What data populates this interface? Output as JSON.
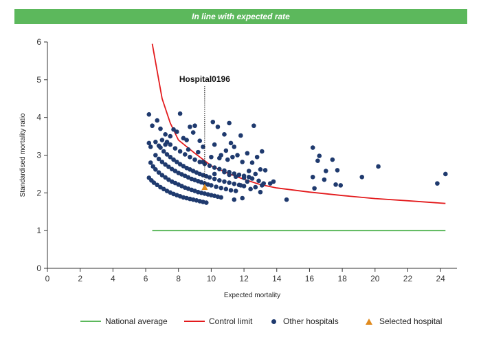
{
  "banner": {
    "text": "In line with expected rate"
  },
  "chart_data": {
    "type": "scatter",
    "title": "",
    "xlabel": "Expected mortality",
    "ylabel": "Standardised mortality ratio",
    "xlim": [
      0,
      25
    ],
    "ylim": [
      0,
      6
    ],
    "xticks": [
      0,
      2,
      4,
      6,
      8,
      10,
      12,
      14,
      16,
      18,
      20,
      22,
      24
    ],
    "yticks": [
      0,
      1,
      2,
      3,
      4,
      5,
      6
    ],
    "grid": false,
    "legend_position": "bottom",
    "colors": {
      "national_average": "#5cb85c",
      "control_limit": "#e31a1c",
      "other_hospitals": "#1f3a6e",
      "selected_hospital": "#e08a1e"
    },
    "national_average": {
      "name": "National average",
      "y": 1,
      "x_range": [
        6.4,
        24.3
      ]
    },
    "control_limit": {
      "name": "Control limit",
      "x_start": 6.4,
      "x_end": 24.3,
      "points": [
        [
          6.4,
          5.95
        ],
        [
          7,
          4.5
        ],
        [
          7.5,
          3.85
        ],
        [
          8,
          3.4
        ],
        [
          9,
          3.05
        ],
        [
          10,
          2.72
        ],
        [
          11,
          2.52
        ],
        [
          12,
          2.36
        ],
        [
          13,
          2.22
        ],
        [
          14,
          2.13
        ],
        [
          16,
          2.02
        ],
        [
          18,
          1.93
        ],
        [
          20,
          1.85
        ],
        [
          22,
          1.79
        ],
        [
          24.3,
          1.72
        ]
      ]
    },
    "selected_hospital": {
      "name": "Selected hospital",
      "label": "Hospital0196",
      "x": 9.6,
      "y": 2.15
    },
    "other_hospitals": {
      "name": "Other hospitals",
      "curve_points": [
        [
          6.2,
          2.4
        ],
        [
          6.35,
          2.33
        ],
        [
          6.5,
          2.27
        ],
        [
          6.7,
          2.21
        ],
        [
          6.9,
          2.15
        ],
        [
          7.1,
          2.1
        ],
        [
          7.3,
          2.05
        ],
        [
          7.5,
          2.01
        ],
        [
          7.7,
          1.97
        ],
        [
          7.9,
          1.94
        ],
        [
          8.1,
          1.91
        ],
        [
          8.3,
          1.88
        ],
        [
          8.5,
          1.86
        ],
        [
          8.7,
          1.84
        ],
        [
          8.9,
          1.82
        ],
        [
          9.1,
          1.8
        ],
        [
          9.3,
          1.78
        ],
        [
          9.5,
          1.76
        ],
        [
          9.7,
          1.74
        ],
        [
          6.3,
          2.8
        ],
        [
          6.45,
          2.7
        ],
        [
          6.6,
          2.62
        ],
        [
          6.8,
          2.54
        ],
        [
          7,
          2.47
        ],
        [
          7.2,
          2.41
        ],
        [
          7.4,
          2.35
        ],
        [
          7.6,
          2.3
        ],
        [
          7.8,
          2.26
        ],
        [
          8,
          2.22
        ],
        [
          8.2,
          2.18
        ],
        [
          8.4,
          2.14
        ],
        [
          8.6,
          2.11
        ],
        [
          8.8,
          2.08
        ],
        [
          9,
          2.05
        ],
        [
          9.2,
          2.02
        ],
        [
          9.4,
          2
        ],
        [
          9.6,
          1.98
        ],
        [
          9.8,
          1.96
        ],
        [
          10,
          1.94
        ],
        [
          10.2,
          1.92
        ],
        [
          10.4,
          1.9
        ],
        [
          10.6,
          1.88
        ],
        [
          6.6,
          3.0
        ],
        [
          6.8,
          2.9
        ],
        [
          7,
          2.82
        ],
        [
          7.2,
          2.75
        ],
        [
          7.4,
          2.69
        ],
        [
          7.6,
          2.63
        ],
        [
          7.8,
          2.58
        ],
        [
          8,
          2.53
        ],
        [
          8.2,
          2.49
        ],
        [
          8.4,
          2.45
        ],
        [
          8.6,
          2.41
        ],
        [
          8.8,
          2.37
        ],
        [
          9,
          2.34
        ],
        [
          9.2,
          2.31
        ],
        [
          9.4,
          2.28
        ],
        [
          9.6,
          2.25
        ],
        [
          9.8,
          2.22
        ],
        [
          10,
          2.2
        ],
        [
          10.3,
          2.16
        ],
        [
          10.6,
          2.13
        ],
        [
          10.9,
          2.1
        ],
        [
          11.2,
          2.07
        ],
        [
          11.5,
          2.05
        ],
        [
          6.9,
          3.2
        ],
        [
          7.1,
          3.1
        ],
        [
          7.3,
          3.02
        ],
        [
          7.5,
          2.95
        ],
        [
          7.7,
          2.88
        ],
        [
          7.9,
          2.82
        ],
        [
          8.1,
          2.76
        ],
        [
          8.3,
          2.71
        ],
        [
          8.5,
          2.66
        ],
        [
          8.7,
          2.62
        ],
        [
          8.9,
          2.58
        ],
        [
          9.1,
          2.54
        ],
        [
          9.3,
          2.5
        ],
        [
          9.5,
          2.47
        ],
        [
          9.7,
          2.44
        ],
        [
          9.9,
          2.41
        ],
        [
          10.2,
          2.37
        ],
        [
          10.5,
          2.33
        ],
        [
          10.8,
          2.3
        ],
        [
          11.1,
          2.27
        ],
        [
          11.4,
          2.24
        ],
        [
          11.7,
          2.21
        ],
        [
          12,
          2.18
        ],
        [
          7.3,
          3.35
        ],
        [
          7.5,
          3.28
        ],
        [
          7.8,
          3.18
        ],
        [
          8.1,
          3.1
        ],
        [
          8.4,
          3.02
        ],
        [
          8.7,
          2.95
        ],
        [
          9,
          2.88
        ],
        [
          9.3,
          2.82
        ],
        [
          9.6,
          2.77
        ],
        [
          9.9,
          2.72
        ],
        [
          10.2,
          2.67
        ],
        [
          10.5,
          2.63
        ],
        [
          10.8,
          2.59
        ],
        [
          11.1,
          2.55
        ],
        [
          11.4,
          2.51
        ],
        [
          11.7,
          2.48
        ],
        [
          12,
          2.45
        ],
        [
          12.3,
          2.42
        ]
      ],
      "scatter_points": [
        [
          6.2,
          4.08
        ],
        [
          6.4,
          3.78
        ],
        [
          6.7,
          3.92
        ],
        [
          6.9,
          3.7
        ],
        [
          7.2,
          3.55
        ],
        [
          7.5,
          3.5
        ],
        [
          7.7,
          3.68
        ],
        [
          7.9,
          3.62
        ],
        [
          8.1,
          4.1
        ],
        [
          8.3,
          3.45
        ],
        [
          8.5,
          3.4
        ],
        [
          8.7,
          3.75
        ],
        [
          8.9,
          3.6
        ],
        [
          9.0,
          3.78
        ],
        [
          9.3,
          3.38
        ],
        [
          9.5,
          3.22
        ],
        [
          6.2,
          3.32
        ],
        [
          6.3,
          3.22
        ],
        [
          6.6,
          3.35
        ],
        [
          6.8,
          3.25
        ],
        [
          7.0,
          3.4
        ],
        [
          7.2,
          3.28
        ],
        [
          8.6,
          3.15
        ],
        [
          9.2,
          3.08
        ],
        [
          9.5,
          2.82
        ],
        [
          10.1,
          3.88
        ],
        [
          10.4,
          3.75
        ],
        [
          10.8,
          3.55
        ],
        [
          11.1,
          3.85
        ],
        [
          11.4,
          3.22
        ],
        [
          11.8,
          3.52
        ],
        [
          10.2,
          3.28
        ],
        [
          10.6,
          3.0
        ],
        [
          10.9,
          3.12
        ],
        [
          11.2,
          3.32
        ],
        [
          10.0,
          2.95
        ],
        [
          10.5,
          2.92
        ],
        [
          11.0,
          2.88
        ],
        [
          11.3,
          2.95
        ],
        [
          11.6,
          3.0
        ],
        [
          11.9,
          2.82
        ],
        [
          12.2,
          3.05
        ],
        [
          12.5,
          2.8
        ],
        [
          12.8,
          2.95
        ],
        [
          12.6,
          3.78
        ],
        [
          13.1,
          3.1
        ],
        [
          12.3,
          2.58
        ],
        [
          12.7,
          2.5
        ],
        [
          13.0,
          2.62
        ],
        [
          13.3,
          2.6
        ],
        [
          13.6,
          2.25
        ],
        [
          13.8,
          2.3
        ],
        [
          10.2,
          2.5
        ],
        [
          10.8,
          2.55
        ],
        [
          11.1,
          2.48
        ],
        [
          11.5,
          2.43
        ],
        [
          12.0,
          2.4
        ],
        [
          12.5,
          2.38
        ],
        [
          12.9,
          2.32
        ],
        [
          13.2,
          2.25
        ],
        [
          12.2,
          2.3
        ],
        [
          12.4,
          2.1
        ],
        [
          11.8,
          2.2
        ],
        [
          12.7,
          2.15
        ],
        [
          13.0,
          2.02
        ],
        [
          13.1,
          2.2
        ],
        [
          11.4,
          1.82
        ],
        [
          11.9,
          1.86
        ],
        [
          14.6,
          1.82
        ],
        [
          16.2,
          2.42
        ],
        [
          16.3,
          2.12
        ],
        [
          16.5,
          2.85
        ],
        [
          16.6,
          2.98
        ],
        [
          16.9,
          2.35
        ],
        [
          17.0,
          2.58
        ],
        [
          17.4,
          2.88
        ],
        [
          17.6,
          2.22
        ],
        [
          17.9,
          2.2
        ],
        [
          17.7,
          2.6
        ],
        [
          16.2,
          3.2
        ],
        [
          19.2,
          2.42
        ],
        [
          20.2,
          2.7
        ],
        [
          23.8,
          2.25
        ],
        [
          24.3,
          2.5
        ]
      ]
    }
  }
}
